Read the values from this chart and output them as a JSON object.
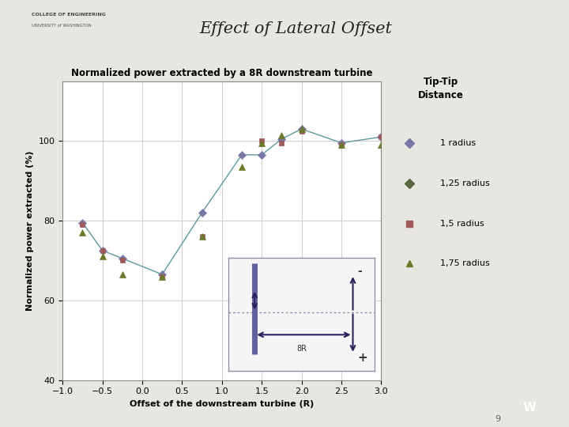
{
  "title": "Effect of Lateral Offset",
  "subtitle": "Normalized power extracted by a 8R downstream turbine",
  "xlabel": "Offset of the downstream turbine (R)",
  "ylabel": "Normalized power extracted (%)",
  "xlim": [
    -1,
    3
  ],
  "ylim": [
    40,
    115
  ],
  "xticks": [
    -1,
    -0.5,
    0,
    0.5,
    1,
    1.5,
    2,
    2.5,
    3
  ],
  "yticks": [
    40,
    60,
    80,
    100
  ],
  "bg_color": "#e8e6e0",
  "plot_bg": "#ffffff",
  "line_color": "#5a9a9a",
  "series_1r": {
    "x": [
      -0.75,
      -0.5,
      -0.25,
      0.25,
      0.75,
      1.25,
      1.5,
      1.75,
      2.0,
      2.5,
      3.0
    ],
    "y": [
      79.5,
      72.5,
      70.5,
      66.5,
      82.0,
      96.5,
      96.5,
      100.5,
      103.0,
      99.5,
      101.0
    ],
    "color": "#7878a8",
    "marker": "D",
    "markersize": 5,
    "label": "1 radius"
  },
  "series_15r": {
    "x": [
      -0.75,
      -0.5,
      -0.25,
      0.25,
      0.75,
      1.5,
      1.75,
      2.0,
      2.5,
      3.0
    ],
    "y": [
      79.0,
      72.5,
      70.0,
      66.0,
      76.0,
      100.0,
      99.5,
      102.5,
      99.0,
      101.0
    ],
    "color": "#a05858",
    "marker": "s",
    "markersize": 5,
    "label": "1,5 radius"
  },
  "series_175r": {
    "x": [
      -0.75,
      -0.5,
      -0.25,
      0.25,
      0.75,
      1.25,
      1.5,
      1.75,
      2.0,
      2.5,
      3.0
    ],
    "y": [
      77.0,
      71.0,
      66.5,
      66.0,
      76.0,
      93.5,
      99.5,
      101.5,
      103.0,
      99.0,
      99.0
    ],
    "color": "#6a7a28",
    "marker": "^",
    "markersize": 6,
    "label": "1,75 radius"
  },
  "legend_entries": [
    {
      "label": "1 radius",
      "color": "#7878a8",
      "marker": "D"
    },
    {
      "label": "1,25 radius",
      "color": "#5a6840",
      "marker": "D"
    },
    {
      "label": "1,5 radius",
      "color": "#a05858",
      "marker": "s"
    },
    {
      "label": "1,75 radius",
      "color": "#6a7a28",
      "marker": "^"
    }
  ],
  "inset_arrow_color": "#2a2060",
  "inset_turbine_color": "#6060a0",
  "inset_dotted_color": "#9090b0"
}
